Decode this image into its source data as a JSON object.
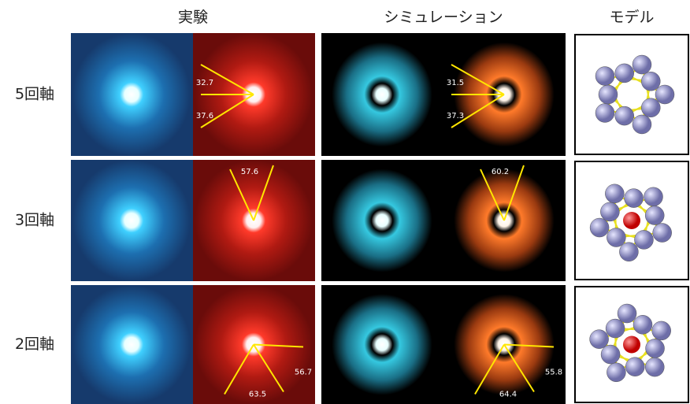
{
  "columns": [
    "実験",
    "シミュレーション",
    "モデル"
  ],
  "rows": [
    {
      "label": "5回軸",
      "experiment_angles": [
        32.7,
        37.6
      ],
      "simulation_angles": [
        31.5,
        37.3
      ]
    },
    {
      "label": "3回軸",
      "experiment_angles": [
        57.6
      ],
      "simulation_angles": [
        60.2
      ]
    },
    {
      "label": "2回軸",
      "experiment_angles": [
        56.7,
        63.5
      ],
      "simulation_angles": [
        55.8,
        64.4
      ]
    }
  ]
}
